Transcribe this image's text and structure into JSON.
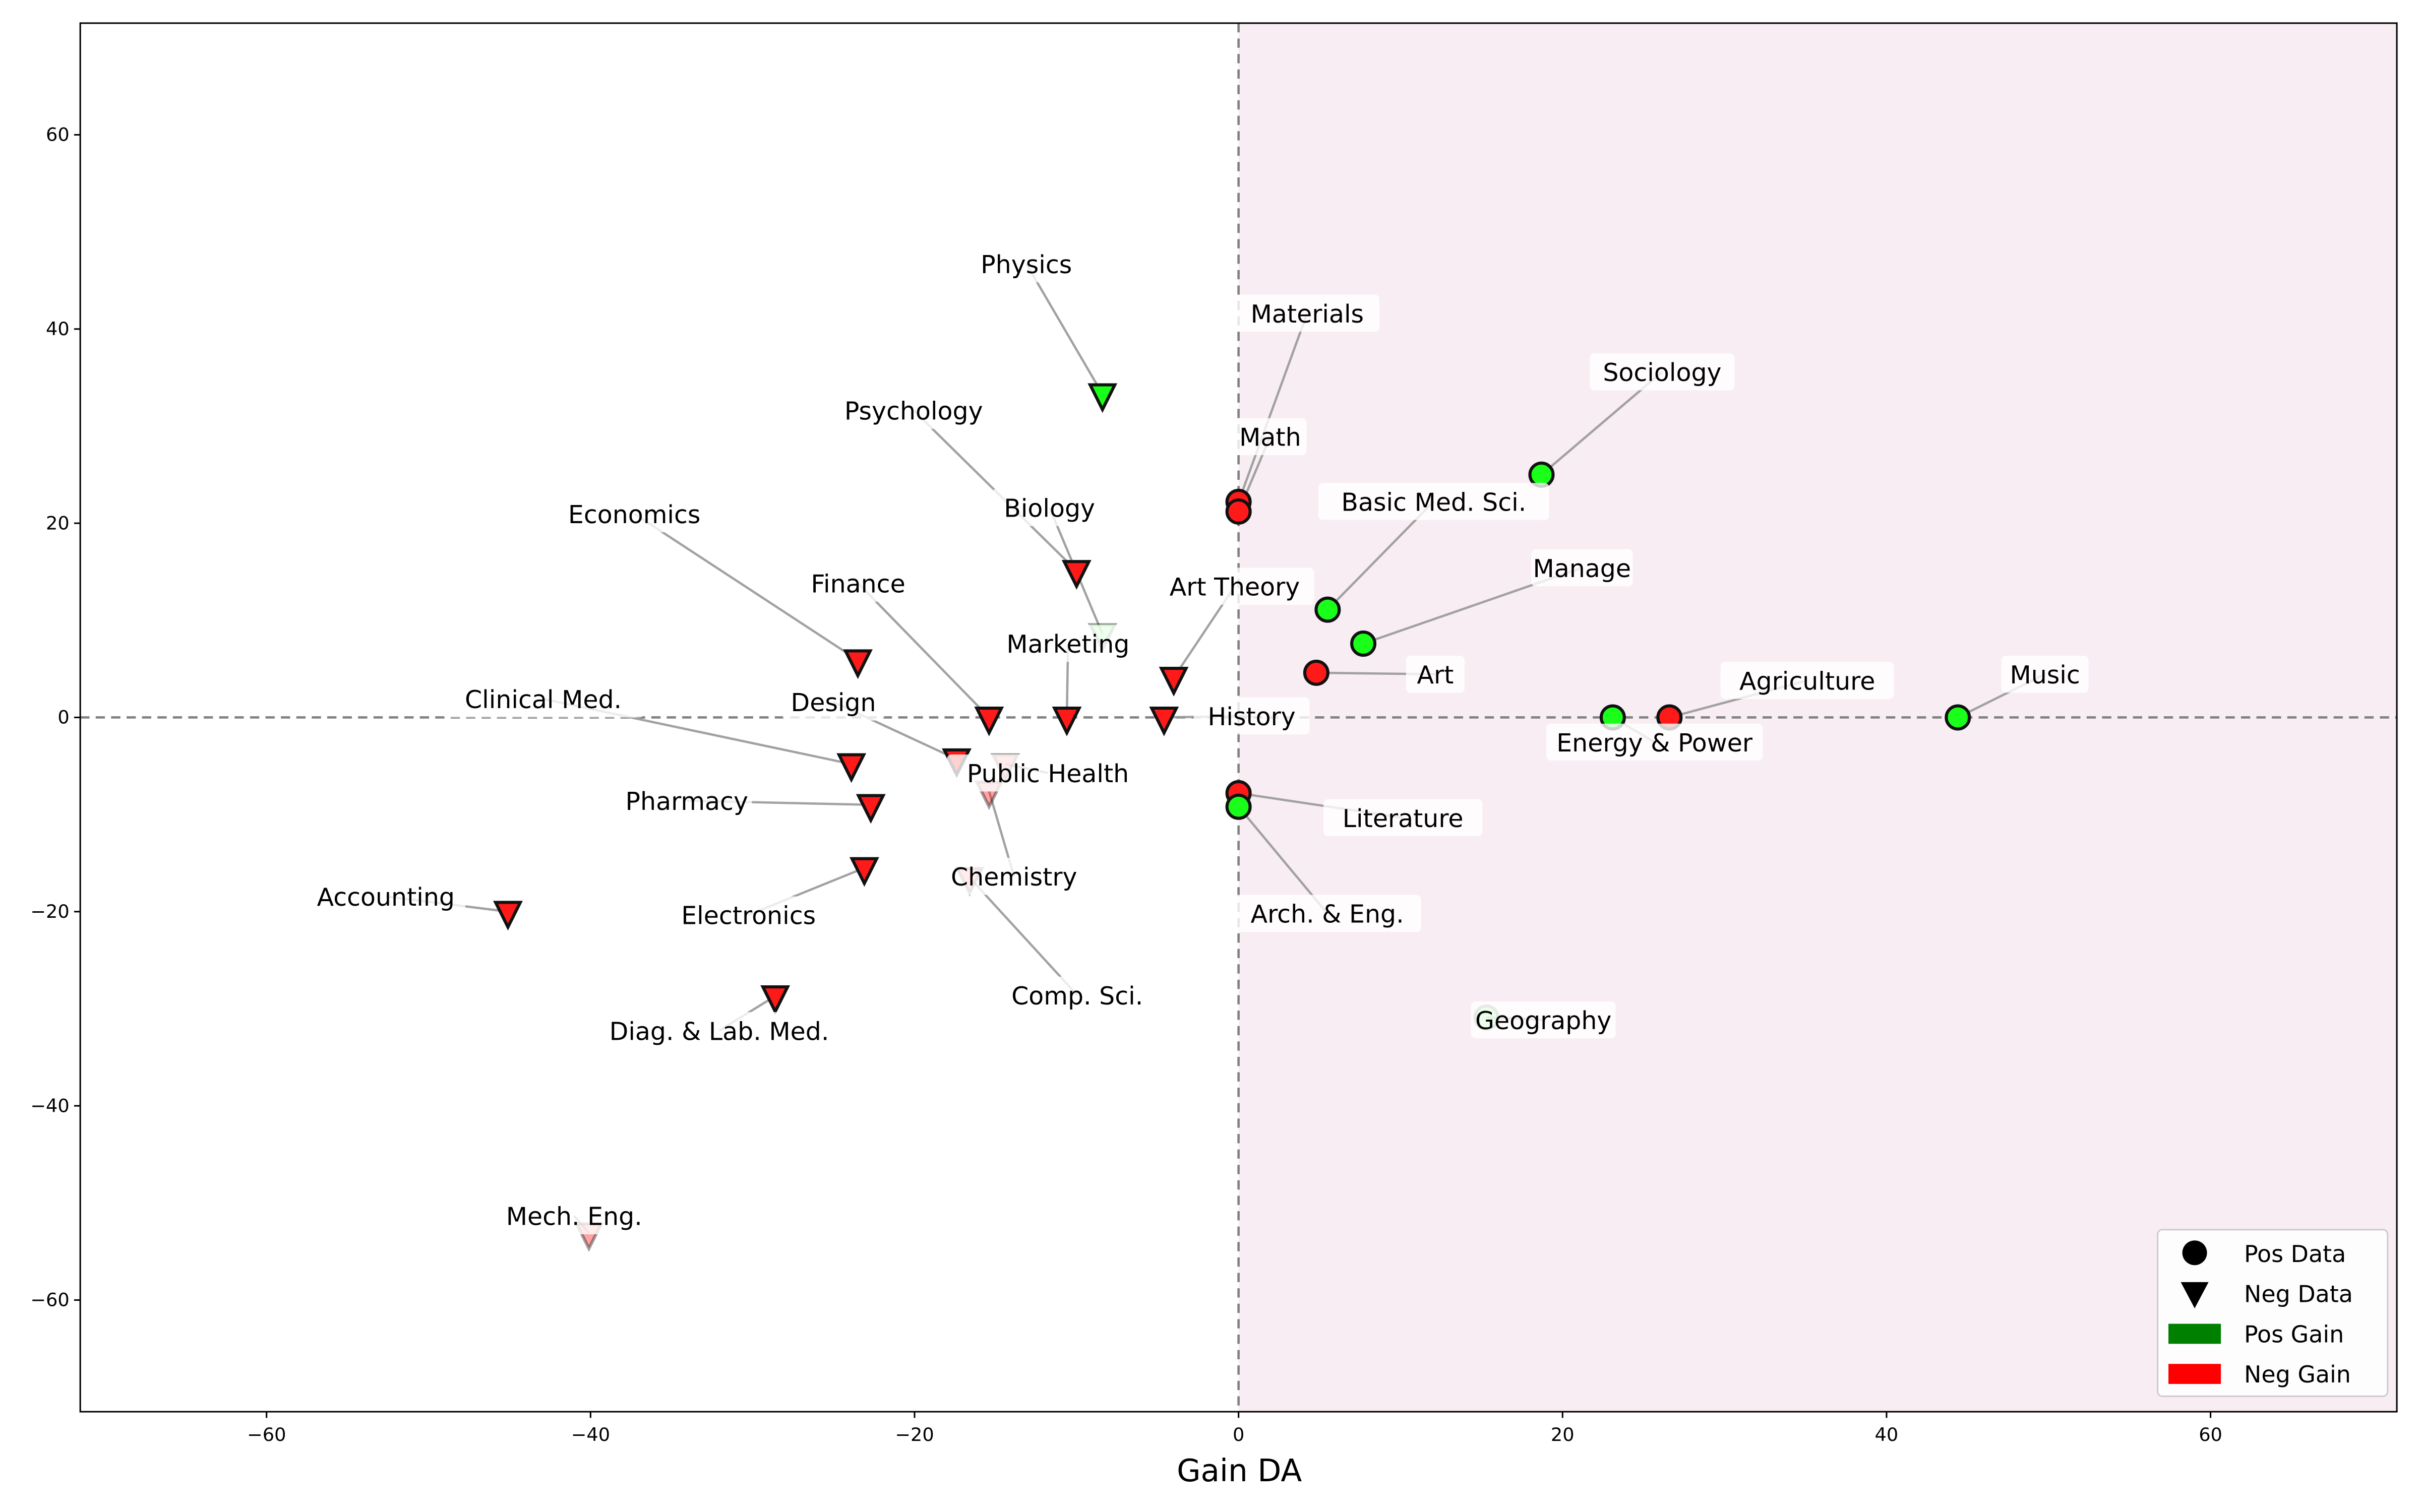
{
  "chart_data": {
    "type": "scatter",
    "title": "",
    "xlabel": "Gain DA",
    "ylabel": "",
    "xlim": [
      -71.5,
      71.5
    ],
    "ylim": [
      -71.5,
      71.5
    ],
    "xticks": [
      -60,
      -40,
      -20,
      0,
      20,
      40,
      60
    ],
    "yticks": [
      -60,
      -40,
      -20,
      0,
      20,
      40,
      60
    ],
    "grid": false,
    "reference_lines": {
      "x": 0,
      "y": 0,
      "style": "dashed"
    },
    "shaded_region": "x > 0",
    "legend_placement": "bottom-right",
    "legend": [
      {
        "label": "Pos Data",
        "marker": "circle",
        "color": "#000000"
      },
      {
        "label": "Neg Data",
        "marker": "triangle-down",
        "color": "#000000"
      },
      {
        "label": "Pos Gain",
        "marker": "patch",
        "color": "#008000"
      },
      {
        "label": "Neg Gain",
        "marker": "patch",
        "color": "#ff0000"
      }
    ],
    "colors": {
      "pos_gain": "#1aff1a",
      "neg_gain": "#ff1a1a",
      "shade": "#f8edf3"
    },
    "points": [
      {
        "label": "Physics",
        "x": -8.4,
        "y": 33.3,
        "data": "neg",
        "gain": "pos",
        "faded": false
      },
      {
        "label": "Psychology",
        "x": -10.0,
        "y": 15.1,
        "data": "neg",
        "gain": "neg",
        "faded": false
      },
      {
        "label": "Biology",
        "x": -8.4,
        "y": 8.6,
        "data": "neg",
        "gain": "pos",
        "faded": true
      },
      {
        "label": "Economics",
        "x": -23.5,
        "y": 5.9,
        "data": "neg",
        "gain": "neg",
        "faded": false
      },
      {
        "label": "Finance",
        "x": -15.4,
        "y": 0,
        "data": "neg",
        "gain": "neg",
        "faded": false
      },
      {
        "label": "Marketing",
        "x": -10.6,
        "y": 0,
        "data": "neg",
        "gain": "neg",
        "faded": false
      },
      {
        "label": "Art Theory",
        "x": -4.0,
        "y": 4.1,
        "data": "neg",
        "gain": "neg",
        "faded": false
      },
      {
        "label": "History",
        "x": -4.6,
        "y": 0,
        "data": "neg",
        "gain": "neg",
        "faded": false
      },
      {
        "label": "Design",
        "x": -17.4,
        "y": -4.3,
        "data": "neg",
        "gain": "neg",
        "faded": false
      },
      {
        "label": "Public Health",
        "x": -14.4,
        "y": -4.8,
        "data": "neg",
        "gain": "neg",
        "faded": true
      },
      {
        "label": "Chemistry",
        "x": -15.4,
        "y": -7.6,
        "data": "neg",
        "gain": "neg",
        "faded": true
      },
      {
        "label": "Clinical Med.",
        "x": -23.9,
        "y": -4.8,
        "data": "neg",
        "gain": "neg",
        "faded": false
      },
      {
        "label": "Pharmacy",
        "x": -22.7,
        "y": -9.0,
        "data": "neg",
        "gain": "neg",
        "faded": false
      },
      {
        "label": "Electronics",
        "x": -23.1,
        "y": -15.5,
        "data": "neg",
        "gain": "neg",
        "faded": false
      },
      {
        "label": "Comp. Sci.",
        "x": -16.6,
        "y": -16.5,
        "data": "neg",
        "gain": "neg",
        "faded": true
      },
      {
        "label": "Accounting",
        "x": -45.1,
        "y": -20.0,
        "data": "neg",
        "gain": "neg",
        "faded": false
      },
      {
        "label": "Diag. & Lab. Med.",
        "x": -28.6,
        "y": -28.7,
        "data": "neg",
        "gain": "neg",
        "faded": false
      },
      {
        "label": "Mech. Eng.",
        "x": -40.1,
        "y": -53.1,
        "data": "neg",
        "gain": "neg",
        "faded": true
      },
      {
        "label": "Materials",
        "x": 0,
        "y": 22.2,
        "data": "pos",
        "gain": "neg",
        "faded": false
      },
      {
        "label": "Math",
        "x": 0,
        "y": 21.2,
        "data": "pos",
        "gain": "neg",
        "faded": false
      },
      {
        "label": "Basic Med. Sci.",
        "x": 5.5,
        "y": 11.1,
        "data": "pos",
        "gain": "pos",
        "faded": false
      },
      {
        "label": "Sociology",
        "x": 18.7,
        "y": 25.0,
        "data": "pos",
        "gain": "pos",
        "faded": false
      },
      {
        "label": "Manage",
        "x": 7.7,
        "y": 7.6,
        "data": "pos",
        "gain": "pos",
        "faded": false
      },
      {
        "label": "Art",
        "x": 4.8,
        "y": 4.6,
        "data": "pos",
        "gain": "neg",
        "faded": false
      },
      {
        "label": "Energy & Power",
        "x": 23.1,
        "y": 0,
        "data": "pos",
        "gain": "pos",
        "faded": false
      },
      {
        "label": "Agriculture",
        "x": 26.6,
        "y": 0,
        "data": "pos",
        "gain": "neg",
        "faded": false
      },
      {
        "label": "Music",
        "x": 44.4,
        "y": 0,
        "data": "pos",
        "gain": "pos",
        "faded": false
      },
      {
        "label": "Literature",
        "x": 0,
        "y": -7.8,
        "data": "pos",
        "gain": "neg",
        "faded": false
      },
      {
        "label": "Arch. & Eng.",
        "x": 0,
        "y": -9.2,
        "data": "pos",
        "gain": "pos",
        "faded": false
      },
      {
        "label": "Geography",
        "x": 15.3,
        "y": -30.9,
        "data": "pos",
        "gain": "pos",
        "faded": true
      }
    ]
  }
}
